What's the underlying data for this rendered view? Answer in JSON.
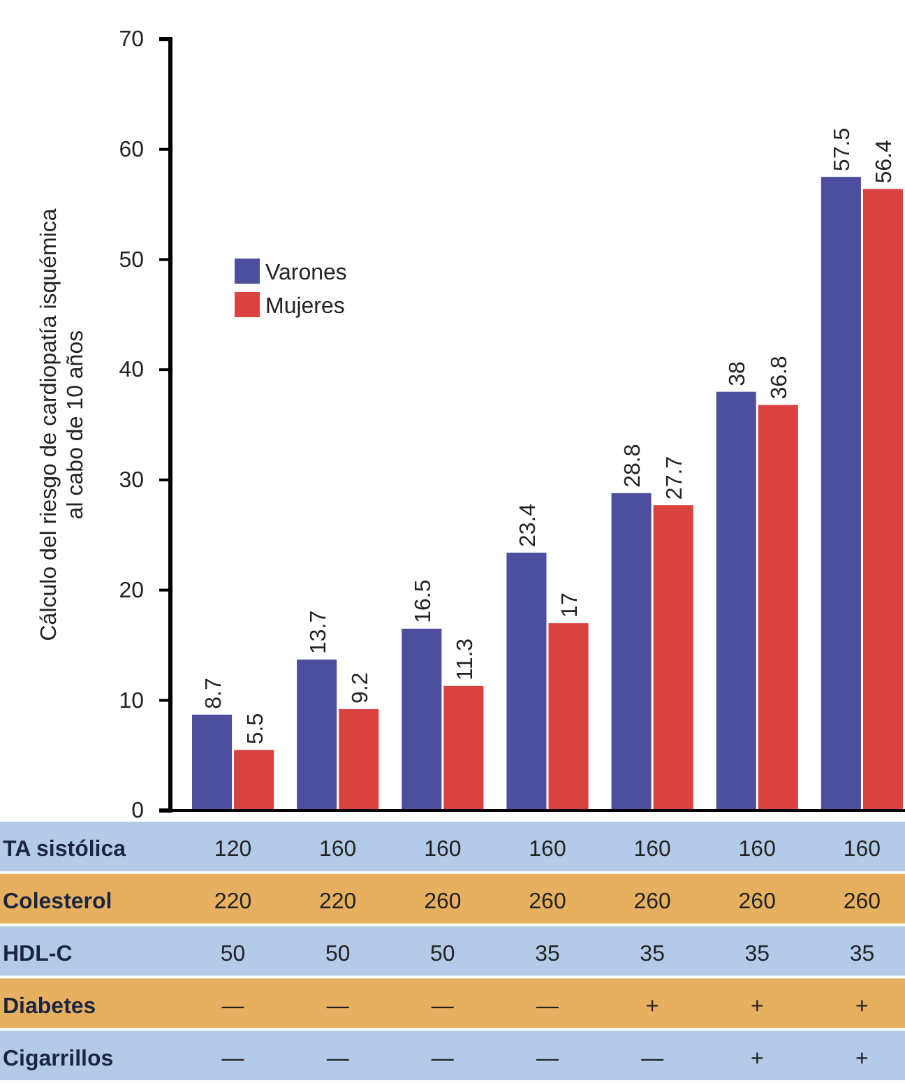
{
  "chart_data": {
    "type": "bar",
    "ylabel": "Cálculo del riesgo de cardiopatía isquémica\nal cabo de 10 años",
    "categories": [
      "120\n220\n50\n—\n—",
      "160\n220\n50\n—\n—",
      "160\n260\n50\n—\n—",
      "160\n260\n35\n—\n—",
      "160\n260\n35\n+\n—",
      "160\n260\n35\n+\n+",
      "160\n260\n35\n+\n+"
    ],
    "series": [
      {
        "name": "Varones",
        "color": "#4d4f9e",
        "values": [
          8.7,
          13.7,
          16.5,
          23.4,
          28.8,
          38,
          57.5
        ]
      },
      {
        "name": "Mujeres",
        "color": "#d9423f",
        "values": [
          5.5,
          9.2,
          11.3,
          17,
          27.7,
          36.8,
          56.4
        ]
      }
    ],
    "ylim": [
      0,
      70
    ],
    "yticks": [
      0,
      10,
      20,
      30,
      40,
      50,
      60,
      70
    ],
    "grid": false,
    "legend": "top left",
    "data_labels": true,
    "annotations": [
      "TA sistólica",
      "Colesterol",
      "HDL-C",
      "Diabetes",
      "Cigarrillos"
    ]
  }
}
